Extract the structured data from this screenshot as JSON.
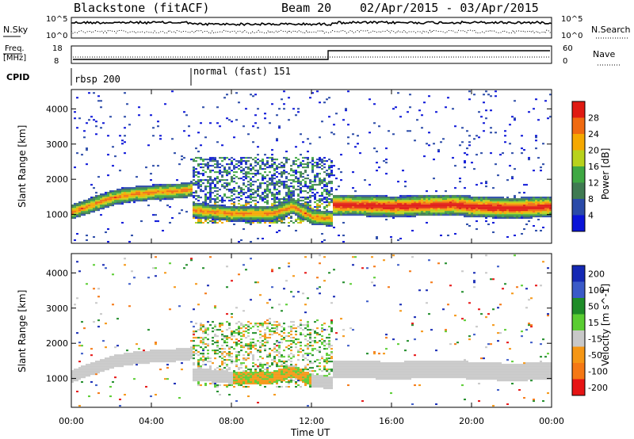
{
  "header": {
    "station": "Blackstone (fitACF)",
    "beam": "Beam 20",
    "dates": "02/Apr/2015 - 03/Apr/2015"
  },
  "panels": {
    "nsky_label": "N.Sky",
    "nsearch_label": "N.Search",
    "nsky_ticks": [
      "10^5",
      "10^0"
    ],
    "nsearch_ticks": [
      "10^5",
      "10^0"
    ],
    "freq_label_line1": "Freq.",
    "freq_label_line2": "[MHz]",
    "freq_ticks": [
      "18",
      "8"
    ],
    "nave_label": "Nave",
    "nave_ticks": [
      "60",
      "0"
    ],
    "cpid_label": "CPID",
    "cpid_segments": [
      {
        "label": "rbsp 200",
        "start_h": 0
      },
      {
        "label": "normal (fast) 151",
        "start_h": 6
      }
    ]
  },
  "chart_data": [
    {
      "type": "heatmap",
      "title": "",
      "xlabel": "",
      "ylabel": "Slant Range [km]",
      "xlim": [
        0,
        24
      ],
      "ylim": [
        180,
        4550
      ],
      "yticks": [
        "1000",
        "2000",
        "3000",
        "4000"
      ],
      "colorbar_label": "Power [dB]",
      "colorbar_ticks": [
        "4",
        "8",
        "12",
        "16",
        "20",
        "24",
        "28"
      ],
      "colorbar_colors": [
        "#0a14d8",
        "#2a4aa8",
        "#3f7a52",
        "#3fa843",
        "#b8d21c",
        "#f5a800",
        "#f06a10",
        "#e01a12"
      ],
      "scatter_band": {
        "segments": [
          {
            "x": [
              0,
              1,
              2,
              3,
              4,
              5.5,
              6
            ],
            "y": [
              1050,
              1250,
              1450,
              1550,
              1600,
              1650,
              1700
            ]
          },
          {
            "x": [
              6,
              7,
              8,
              9,
              10,
              11,
              12,
              13
            ],
            "y": [
              1100,
              1050,
              1000,
              1000,
              1000,
              1200,
              900,
              850
            ]
          },
          {
            "x": [
              13,
              16,
              19,
              20,
              22,
              24
            ],
            "y": [
              1250,
              1200,
              1250,
              1200,
              1150,
              1200
            ]
          }
        ]
      }
    },
    {
      "type": "heatmap",
      "title": "",
      "xlabel": "Time UT",
      "ylabel": "Slant Range [km]",
      "xlim": [
        0,
        24
      ],
      "ylim": [
        180,
        4550
      ],
      "xticks": [
        "00:00",
        "04:00",
        "08:00",
        "12:00",
        "16:00",
        "20:00",
        "00:00"
      ],
      "yticks": [
        "1000",
        "2000",
        "3000",
        "4000"
      ],
      "colorbar_label": "Velocity [m s^-1]",
      "colorbar_ticks": [
        "200",
        "100",
        "50",
        "15",
        "-15",
        "-50",
        "-100",
        "-200"
      ],
      "colorbar_colors": [
        "#1428b4",
        "#3a5ac8",
        "#1e8c28",
        "#5acd32",
        "#c8c8c8",
        "#f59614",
        "#f57814",
        "#e61414"
      ],
      "ground_scatter_color": "#c8c8c8"
    }
  ]
}
